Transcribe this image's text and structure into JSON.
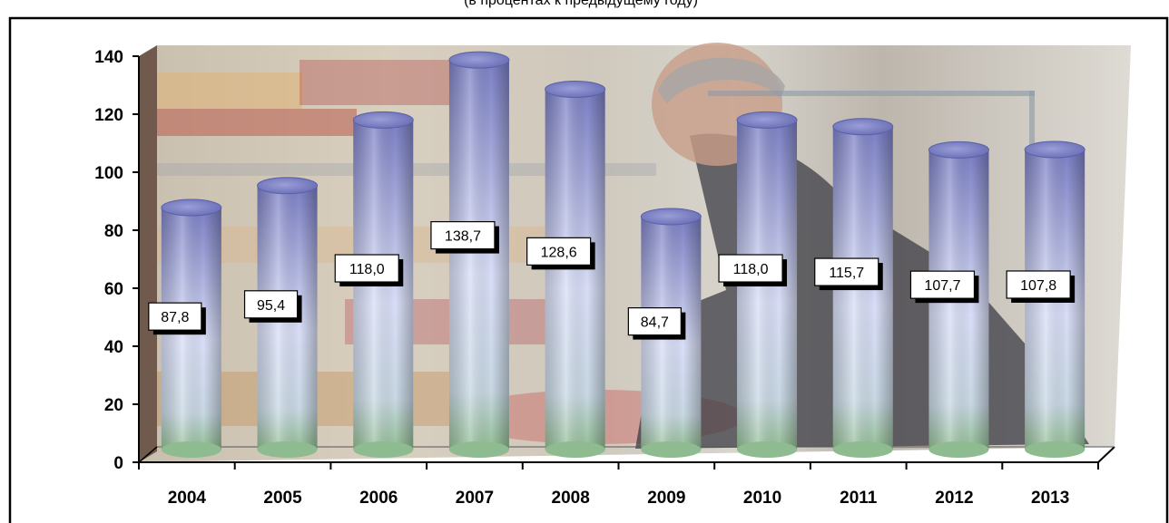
{
  "chart_data": {
    "type": "bar",
    "title": "(в процентах к предыдущему году)",
    "xlabel": "",
    "ylabel": "",
    "categories": [
      "2004",
      "2005",
      "2006",
      "2007",
      "2008",
      "2009",
      "2010",
      "2011",
      "2012",
      "2013"
    ],
    "values": [
      87.8,
      95.4,
      118.0,
      138.7,
      128.6,
      84.7,
      118.0,
      115.7,
      107.7,
      107.8
    ],
    "value_labels": [
      "87,8",
      "95,4",
      "118,0",
      "138,7",
      "128,6",
      "84,7",
      "118,0",
      "115,7",
      "107,7",
      "107,8"
    ],
    "ylim": [
      0,
      140
    ],
    "yticks": [
      "0",
      "20",
      "40",
      "60",
      "80",
      "100",
      "120",
      "140"
    ],
    "grid": false,
    "legend": "none",
    "bar_style": "3d-cylinder",
    "colors": {
      "bar_top": "#8084c8",
      "bar_mid": "#d6dcf6",
      "bar_bottom": "#9cc49c",
      "frame": "#000000"
    },
    "background_image": "cafeteria-photo"
  }
}
